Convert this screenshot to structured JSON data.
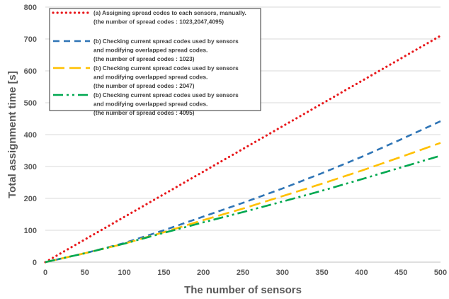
{
  "chart_data": {
    "type": "line",
    "title": "",
    "xlabel": "The number of sensors",
    "ylabel": "Total assignment time [s]",
    "xlim": [
      0,
      500
    ],
    "ylim": [
      0,
      800
    ],
    "xticks": [
      0,
      50,
      100,
      150,
      200,
      250,
      300,
      350,
      400,
      450,
      500
    ],
    "yticks": [
      0,
      100,
      200,
      300,
      400,
      500,
      600,
      700,
      800
    ],
    "grid": true,
    "legend_position": "top-left",
    "x": [
      0,
      50,
      100,
      150,
      200,
      250,
      300,
      350,
      400,
      450,
      500
    ],
    "series": [
      {
        "name": "(a) Assigning spread codes to each sensors, manually.",
        "name_line2": "(the number of spread codes : 1023,2047,4095)",
        "color": "#e8191c",
        "style": "dotted",
        "values": [
          0,
          71,
          142,
          213,
          284,
          355,
          426,
          497,
          568,
          639,
          710
        ]
      },
      {
        "name": "(b) Checking current spread codes used by sensors",
        "name_line2": "and modifying overlapped spread codes.",
        "name_line3": "(the number of spread codes : 1023)",
        "color": "#2f75b6",
        "style": "dashed",
        "values": [
          0,
          28,
          60,
          100,
          143,
          186,
          231,
          279,
          330,
          385,
          442
        ]
      },
      {
        "name": "(b) Checking current spread codes used by sensors",
        "name_line2": "and modifying overlapped spread codes.",
        "name_line3": "(the number of spread codes : 2047)",
        "color": "#ffc000",
        "style": "long-dashed",
        "values": [
          0,
          28,
          58,
          94,
          132,
          168,
          207,
          246,
          287,
          330,
          374
        ]
      },
      {
        "name": "(b) Checking current spread codes used by sensors",
        "name_line2": "and modifying overlapped spread codes.",
        "name_line3": "(the number of spread codes : 4095)",
        "color": "#00a850",
        "style": "dash-dot-dot",
        "values": [
          0,
          28,
          58,
          92,
          125,
          157,
          190,
          224,
          260,
          297,
          334
        ]
      }
    ]
  }
}
